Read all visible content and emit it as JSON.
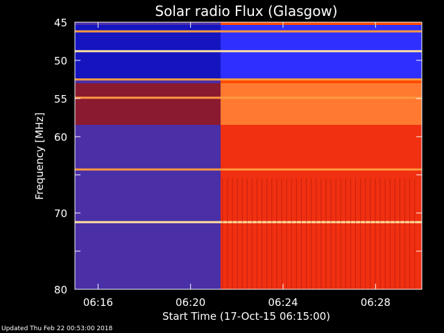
{
  "chart_data": {
    "type": "heatmap",
    "title": "Solar radio Flux (Glasgow)",
    "xlabel": "Start Time (17-Oct-15 06:15:00)",
    "ylabel": "Frequency [MHz]",
    "x_ticks": [
      "06:16",
      "06:20",
      "06:24",
      "06:28"
    ],
    "y_ticks": [
      45,
      50,
      55,
      60,
      65,
      70,
      75,
      80
    ],
    "y_tick_labels": [
      "45",
      "50",
      "55",
      "60",
      "",
      "70",
      "",
      "80"
    ],
    "xlim": [
      "06:15:00",
      "06:30:00"
    ],
    "ylim": [
      45,
      80
    ],
    "y_axis_direction": "down",
    "colormap": [
      "#1010ff",
      "#4a2fa6",
      "#8a1030",
      "#d01010",
      "#ff4a00",
      "#ff9a40",
      "#ffe0a0"
    ],
    "transition_time": "06:21:15",
    "bands": [
      {
        "freq": 46.2,
        "level": 0.95
      },
      {
        "freq": 48.8,
        "level": 1.0
      },
      {
        "freq": 52.5,
        "level": 0.95
      },
      {
        "freq": 54.9,
        "level": 0.9
      },
      {
        "freq": 64.3,
        "level": 0.85
      },
      {
        "freq": 71.2,
        "level": 1.0
      }
    ]
  },
  "footer": {
    "updated": "Updated Thu Feb 22 00:53:00 2018"
  }
}
